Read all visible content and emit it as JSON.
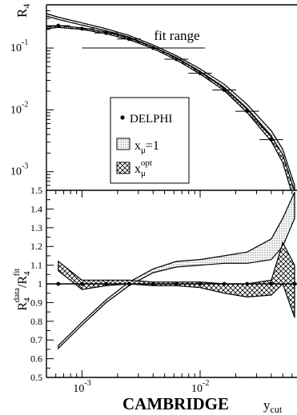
{
  "chart_data": [
    {
      "type": "line",
      "panel": "top",
      "yscale": "log",
      "xscale": "log",
      "ylabel": "R",
      "ylabel_sub": "4",
      "xlim": [
        0.0005,
        0.065
      ],
      "ylim": [
        0.0005,
        0.5
      ],
      "y_ticks": [
        {
          "value": 0.1,
          "base": "10",
          "exp": "-1"
        },
        {
          "value": 0.01,
          "base": "10",
          "exp": "-2"
        },
        {
          "value": 0.001,
          "base": "10",
          "exp": "-3"
        }
      ],
      "fit_range": {
        "label": "fit range",
        "x": [
          0.001,
          0.011
        ],
        "y": 0.1
      },
      "legend": {
        "placement": "center-left",
        "data_label": "DELPHI",
        "band1": {
          "base": "x",
          "sub": "μ",
          "rest": "=1"
        },
        "band2": {
          "base": "x",
          "sub": "μ",
          "sup": "opt"
        }
      },
      "series": [
        {
          "name": "DELPHI",
          "x": [
            0.00063,
            0.001,
            0.0016,
            0.0025,
            0.004,
            0.0063,
            0.01,
            0.016,
            0.025,
            0.04,
            0.063
          ],
          "y": [
            0.23,
            0.205,
            0.175,
            0.14,
            0.1,
            0.066,
            0.039,
            0.021,
            0.0095,
            0.0033,
            0.0004
          ],
          "xerr_factor": 1.26
        }
      ],
      "band_xmu1": {
        "x": [
          0.0005,
          0.00063,
          0.001,
          0.0016,
          0.0025,
          0.004,
          0.0063,
          0.01,
          0.016,
          0.025,
          0.04,
          0.05,
          0.063
        ],
        "lower": [
          0.33,
          0.29,
          0.235,
          0.19,
          0.15,
          0.105,
          0.07,
          0.042,
          0.023,
          0.0105,
          0.0038,
          0.0018,
          0.00045
        ],
        "upper": [
          0.36,
          0.315,
          0.255,
          0.205,
          0.16,
          0.112,
          0.075,
          0.046,
          0.026,
          0.0122,
          0.0046,
          0.0023,
          0.0006
        ]
      },
      "band_xmuopt": {
        "x": [
          0.0005,
          0.00063,
          0.001,
          0.0016,
          0.0025,
          0.004,
          0.0063,
          0.01,
          0.016,
          0.025,
          0.04,
          0.05,
          0.063
        ],
        "lower": [
          0.205,
          0.215,
          0.2,
          0.17,
          0.136,
          0.098,
          0.064,
          0.038,
          0.0205,
          0.009,
          0.0031,
          0.0014,
          0.00032
        ],
        "upper": [
          0.22,
          0.23,
          0.212,
          0.181,
          0.145,
          0.104,
          0.069,
          0.041,
          0.0225,
          0.0102,
          0.0037,
          0.0019,
          0.00048
        ]
      }
    },
    {
      "type": "line",
      "panel": "bottom",
      "xscale": "log",
      "ylabel": "R",
      "ylabel_parts": {
        "base1": "R",
        "sub1": "4",
        "sup1": "data",
        "slash": "/",
        "base2": "R",
        "sub2": "4",
        "sup2": "fit"
      },
      "xlim": [
        0.0005,
        0.065
      ],
      "ylim": [
        0.5,
        1.5
      ],
      "y_tick_labels": [
        "0.5",
        "0.6",
        "0.7",
        "0.8",
        "0.9",
        "1",
        "1.1",
        "1.2",
        "1.3",
        "1.4",
        "1.5"
      ],
      "x_ticks": [
        {
          "value": 0.001,
          "base": "10",
          "exp": "-3"
        },
        {
          "value": 0.01,
          "base": "10",
          "exp": "-2"
        }
      ],
      "xlabel": "y",
      "xlabel_sub": "cut",
      "footer_label": "CAMBRIDGE",
      "reference_line": 1.0,
      "series": [
        {
          "name": "DELPHI",
          "x": [
            0.00063,
            0.001,
            0.0016,
            0.0025,
            0.004,
            0.0063,
            0.01,
            0.016,
            0.025,
            0.04,
            0.063
          ],
          "y": [
            1.0,
            1.0,
            1.0,
            1.0,
            1.0,
            1.0,
            1.0,
            1.0,
            1.0,
            1.0,
            1.0
          ]
        }
      ],
      "band_xmu1": {
        "x": [
          0.00063,
          0.001,
          0.0016,
          0.0025,
          0.004,
          0.0063,
          0.01,
          0.016,
          0.025,
          0.04,
          0.05,
          0.063
        ],
        "lower": [
          0.655,
          0.78,
          0.9,
          0.99,
          1.06,
          1.09,
          1.1,
          1.11,
          1.11,
          1.13,
          1.2,
          1.35
        ],
        "upper": [
          0.67,
          0.795,
          0.915,
          1.01,
          1.08,
          1.12,
          1.13,
          1.15,
          1.17,
          1.24,
          1.35,
          1.49
        ]
      },
      "band_xmuopt": {
        "x": [
          0.00063,
          0.001,
          0.0016,
          0.0025,
          0.004,
          0.0063,
          0.01,
          0.016,
          0.025,
          0.04,
          0.05,
          0.063
        ],
        "lower": [
          1.07,
          0.97,
          0.99,
          1.0,
          0.99,
          0.99,
          0.98,
          0.95,
          0.93,
          0.94,
          1.0,
          0.82
        ],
        "upper": [
          1.12,
          1.02,
          1.02,
          1.02,
          1.01,
          1.01,
          1.01,
          1.0,
          1.0,
          1.02,
          1.22,
          1.1
        ]
      }
    }
  ]
}
